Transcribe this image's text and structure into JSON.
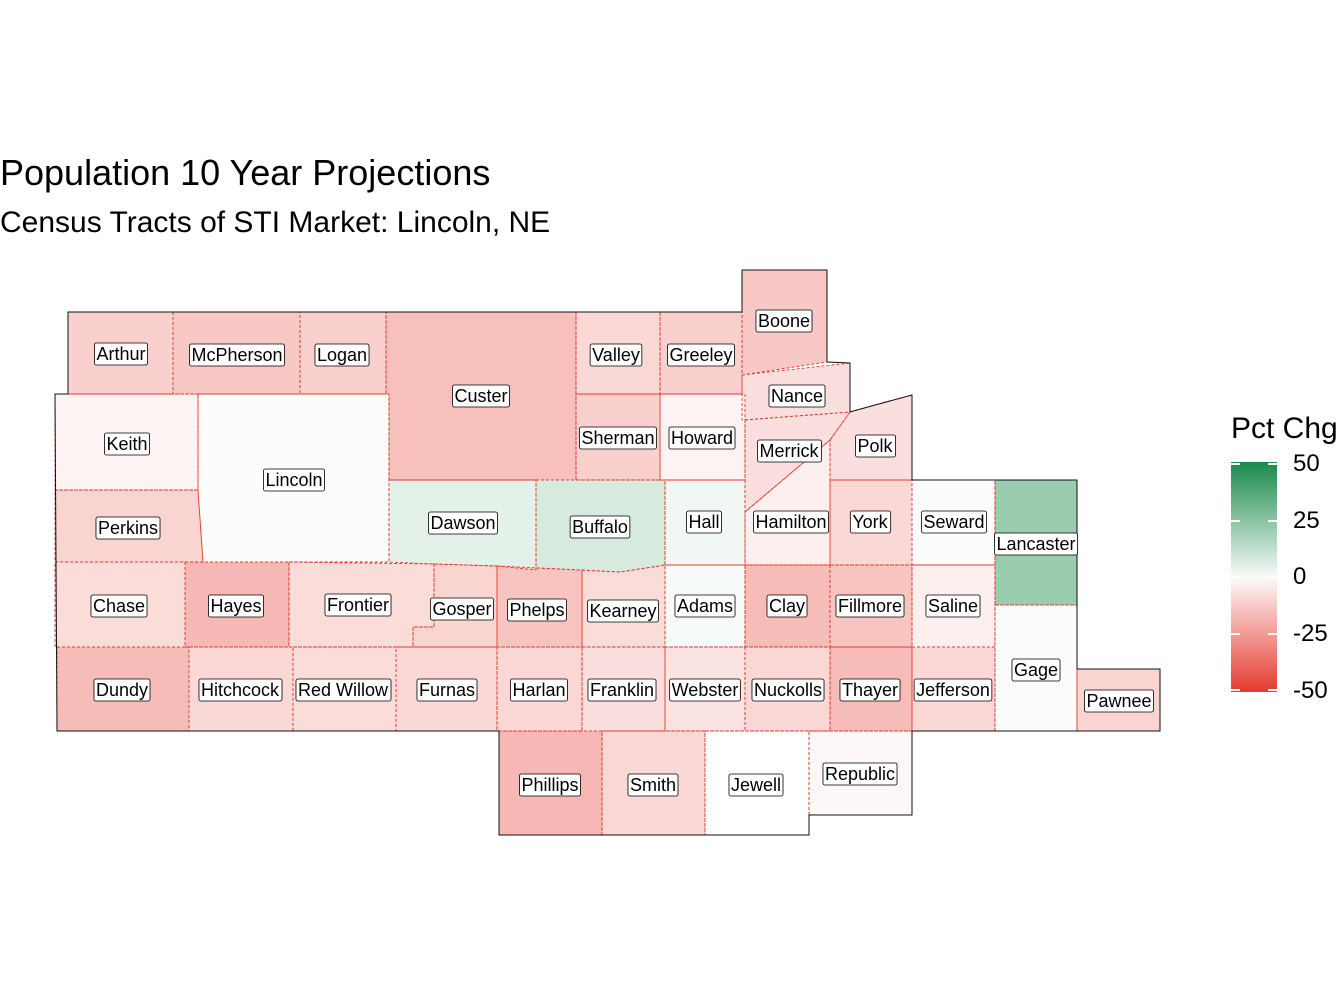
{
  "title": "Population 10 Year Projections",
  "subtitle": "Census Tracts of STI Market: Lincoln, NE",
  "legend": {
    "title": "Pct Chg",
    "ticks": [
      "50",
      "25",
      "0",
      "-25",
      "-50"
    ],
    "high_color": "#1a8a4a",
    "mid_color": "#ffffff",
    "low_color": "#e53a2e"
  },
  "counties": [
    {
      "name": "Arthur",
      "pct": -12
    },
    {
      "name": "McPherson",
      "pct": -14
    },
    {
      "name": "Logan",
      "pct": -12
    },
    {
      "name": "Custer",
      "pct": -16
    },
    {
      "name": "Valley",
      "pct": -10
    },
    {
      "name": "Greeley",
      "pct": -12
    },
    {
      "name": "Boone",
      "pct": -14
    },
    {
      "name": "Nance",
      "pct": -8
    },
    {
      "name": "Keith",
      "pct": -3
    },
    {
      "name": "Lincoln",
      "pct": 1
    },
    {
      "name": "Sherman",
      "pct": -12
    },
    {
      "name": "Howard",
      "pct": -3
    },
    {
      "name": "Merrick",
      "pct": -8
    },
    {
      "name": "Polk",
      "pct": -8
    },
    {
      "name": "Perkins",
      "pct": -11
    },
    {
      "name": "Dawson",
      "pct": 6
    },
    {
      "name": "Buffalo",
      "pct": 9
    },
    {
      "name": "Hall",
      "pct": 3
    },
    {
      "name": "Hamilton",
      "pct": -4
    },
    {
      "name": "York",
      "pct": -10
    },
    {
      "name": "Seward",
      "pct": 1
    },
    {
      "name": "Lancaster",
      "pct": 22
    },
    {
      "name": "Chase",
      "pct": -9
    },
    {
      "name": "Hayes",
      "pct": -18
    },
    {
      "name": "Frontier",
      "pct": -9
    },
    {
      "name": "Gosper",
      "pct": -11
    },
    {
      "name": "Phelps",
      "pct": -15
    },
    {
      "name": "Kearney",
      "pct": -9
    },
    {
      "name": "Adams",
      "pct": 2
    },
    {
      "name": "Clay",
      "pct": -17
    },
    {
      "name": "Fillmore",
      "pct": -15
    },
    {
      "name": "Saline",
      "pct": -4
    },
    {
      "name": "Gage",
      "pct": 1
    },
    {
      "name": "Dundy",
      "pct": -17
    },
    {
      "name": "Hitchcock",
      "pct": -10
    },
    {
      "name": "Red Willow",
      "pct": -9
    },
    {
      "name": "Furnas",
      "pct": -10
    },
    {
      "name": "Harlan",
      "pct": -10
    },
    {
      "name": "Franklin",
      "pct": -8
    },
    {
      "name": "Webster",
      "pct": -7
    },
    {
      "name": "Nuckolls",
      "pct": -10
    },
    {
      "name": "Thayer",
      "pct": -17
    },
    {
      "name": "Jefferson",
      "pct": -10
    },
    {
      "name": "Pawnee",
      "pct": -11
    },
    {
      "name": "Phillips",
      "pct": -18
    },
    {
      "name": "Smith",
      "pct": -10
    },
    {
      "name": "Jewell",
      "pct": 0
    },
    {
      "name": "Republic",
      "pct": -2
    }
  ]
}
